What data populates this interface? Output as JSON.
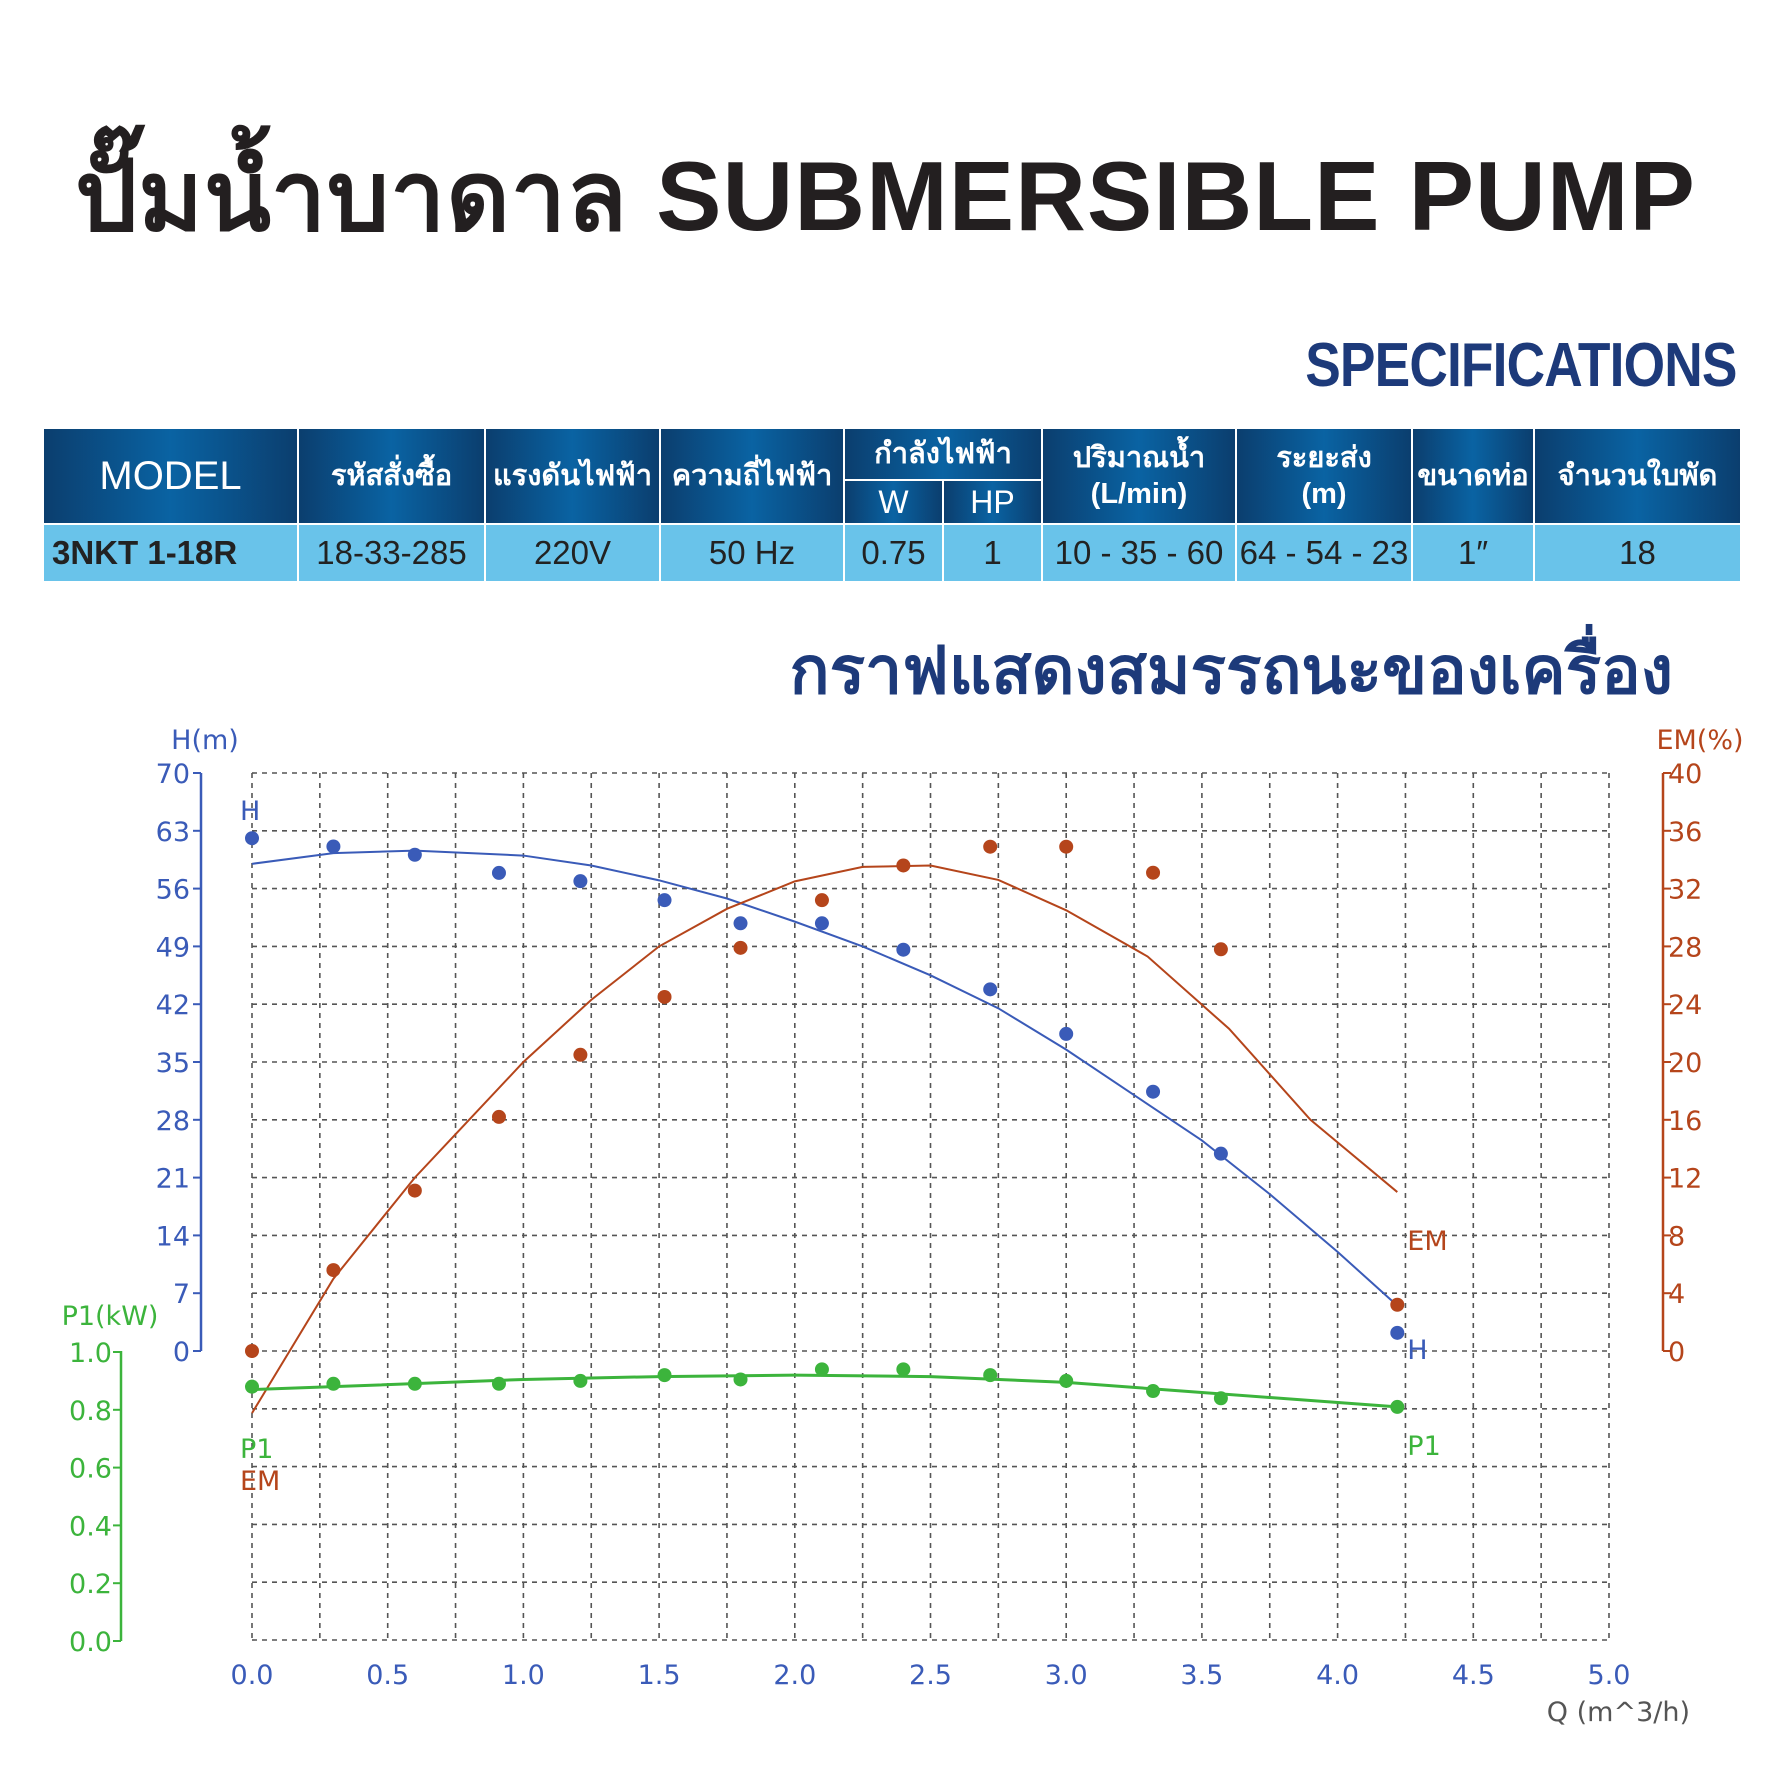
{
  "title": "ปั๊มน้ำบาดาล SUBMERSIBLE  PUMP",
  "specifications_label": "SPECIFICATIONS",
  "table": {
    "headers": {
      "model": "MODEL",
      "order_code": "รหัสสั่งซื้อ",
      "voltage": "แรงดันไฟฟ้า",
      "frequency": "ความถี่ไฟฟ้า",
      "power": "กำลังไฟฟ้า",
      "power_w": "W",
      "power_hp": "HP",
      "flow": "ปริมาณน้ำ",
      "flow_unit": "(L/min)",
      "head": "ระยะส่ง",
      "head_unit": "(m)",
      "pipe": "ขนาดท่อ",
      "impellers": "จำนวนใบพัด"
    },
    "row": {
      "model": "3NKT 1-18R",
      "order_code": "18-33-285",
      "voltage": "220V",
      "frequency": "50 Hz",
      "power_w": "0.75",
      "power_hp": "1",
      "flow": "10 - 35 - 60",
      "head": "64 - 54 - 23",
      "pipe": "1″",
      "impellers": "18"
    }
  },
  "graph_title": "กราฟแสดงสมรรถนะของเครื่อง",
  "chart_data": {
    "type": "line",
    "xlabel": "Q (m^3/h)",
    "xlim": [
      0,
      5
    ],
    "xticks": [
      "0.0",
      "0.5",
      "1.0",
      "1.5",
      "2.0",
      "2.5",
      "3.0",
      "3.5",
      "4.0",
      "4.5",
      "5.0"
    ],
    "grid": true,
    "axes": {
      "H": {
        "label": "H(m)",
        "lim": [
          0,
          70
        ],
        "ticks": [
          "0",
          "7",
          "14",
          "21",
          "28",
          "35",
          "42",
          "49",
          "56",
          "63",
          "70"
        ],
        "color": "#3a5bb8"
      },
      "EM": {
        "label": "EM(%)",
        "lim": [
          0,
          40
        ],
        "ticks": [
          "0",
          "4",
          "8",
          "12",
          "16",
          "20",
          "24",
          "28",
          "32",
          "36",
          "40"
        ],
        "color": "#b5451b"
      },
      "P1": {
        "label": "P1(kW)",
        "lim": [
          0,
          1
        ],
        "ticks": [
          "0.0",
          "0.2",
          "0.4",
          "0.6",
          "0.8",
          "1.0"
        ],
        "color": "#3cb43c"
      }
    },
    "series": [
      {
        "name": "H",
        "axis": "H",
        "color": "#3a5bb8",
        "label_start": "H",
        "label_end": "H",
        "points": [
          [
            0,
            62.1
          ],
          [
            0.3,
            61.1
          ],
          [
            0.6,
            60.1
          ],
          [
            0.91,
            57.9
          ],
          [
            1.21,
            56.9
          ],
          [
            1.52,
            54.6
          ],
          [
            1.8,
            51.8
          ],
          [
            2.1,
            51.8
          ],
          [
            2.4,
            48.6
          ],
          [
            2.72,
            43.8
          ],
          [
            3.0,
            38.4
          ],
          [
            3.32,
            31.4
          ],
          [
            3.57,
            23.9
          ],
          [
            4.22,
            2.2
          ]
        ],
        "curve": [
          [
            0,
            59
          ],
          [
            0.3,
            60.3
          ],
          [
            0.6,
            60.6
          ],
          [
            1.0,
            60
          ],
          [
            1.25,
            58.8
          ],
          [
            1.5,
            57
          ],
          [
            1.75,
            54.8
          ],
          [
            2.0,
            52
          ],
          [
            2.25,
            49
          ],
          [
            2.5,
            45.5
          ],
          [
            2.75,
            41.5
          ],
          [
            3.0,
            36.5
          ],
          [
            3.25,
            31
          ],
          [
            3.5,
            25.5
          ],
          [
            3.75,
            19
          ],
          [
            4.0,
            12
          ],
          [
            4.22,
            5.5
          ]
        ]
      },
      {
        "name": "EM",
        "axis": "EM",
        "color": "#b5451b",
        "label_start": "EM",
        "label_end": "EM",
        "points": [
          [
            0,
            0
          ],
          [
            0.3,
            5.6
          ],
          [
            0.6,
            11.1
          ],
          [
            0.91,
            16.2
          ],
          [
            1.21,
            20.5
          ],
          [
            1.52,
            24.5
          ],
          [
            1.8,
            27.9
          ],
          [
            2.1,
            31.2
          ],
          [
            2.4,
            33.6
          ],
          [
            2.72,
            34.9
          ],
          [
            3.0,
            34.9
          ],
          [
            3.32,
            33.1
          ],
          [
            3.57,
            27.8
          ],
          [
            4.22,
            3.2
          ]
        ],
        "curve": [
          [
            0,
            -4.3
          ],
          [
            0.3,
            5
          ],
          [
            0.6,
            12
          ],
          [
            1.0,
            20
          ],
          [
            1.25,
            24.3
          ],
          [
            1.5,
            28
          ],
          [
            1.75,
            30.6
          ],
          [
            2.0,
            32.5
          ],
          [
            2.25,
            33.5
          ],
          [
            2.5,
            33.6
          ],
          [
            2.75,
            32.6
          ],
          [
            3.0,
            30.5
          ],
          [
            3.3,
            27.3
          ],
          [
            3.6,
            22.3
          ],
          [
            3.9,
            16
          ],
          [
            4.22,
            11
          ]
        ]
      },
      {
        "name": "P1",
        "axis": "P1",
        "color": "#3cb43c",
        "label_start": "P1",
        "label_end": "P1",
        "points": [
          [
            0,
            0.88
          ],
          [
            0.3,
            0.89
          ],
          [
            0.6,
            0.89
          ],
          [
            0.91,
            0.89
          ],
          [
            1.21,
            0.9
          ],
          [
            1.52,
            0.92
          ],
          [
            1.8,
            0.905
          ],
          [
            2.1,
            0.94
          ],
          [
            2.4,
            0.94
          ],
          [
            2.72,
            0.92
          ],
          [
            3.0,
            0.9
          ],
          [
            3.32,
            0.865
          ],
          [
            3.57,
            0.84
          ],
          [
            4.22,
            0.81
          ]
        ],
        "curve": [
          [
            0,
            0.87
          ],
          [
            0.3,
            0.88
          ],
          [
            1.0,
            0.905
          ],
          [
            1.5,
            0.915
          ],
          [
            2.0,
            0.92
          ],
          [
            2.5,
            0.915
          ],
          [
            3.0,
            0.895
          ],
          [
            3.5,
            0.86
          ],
          [
            4.22,
            0.81
          ]
        ]
      }
    ]
  }
}
